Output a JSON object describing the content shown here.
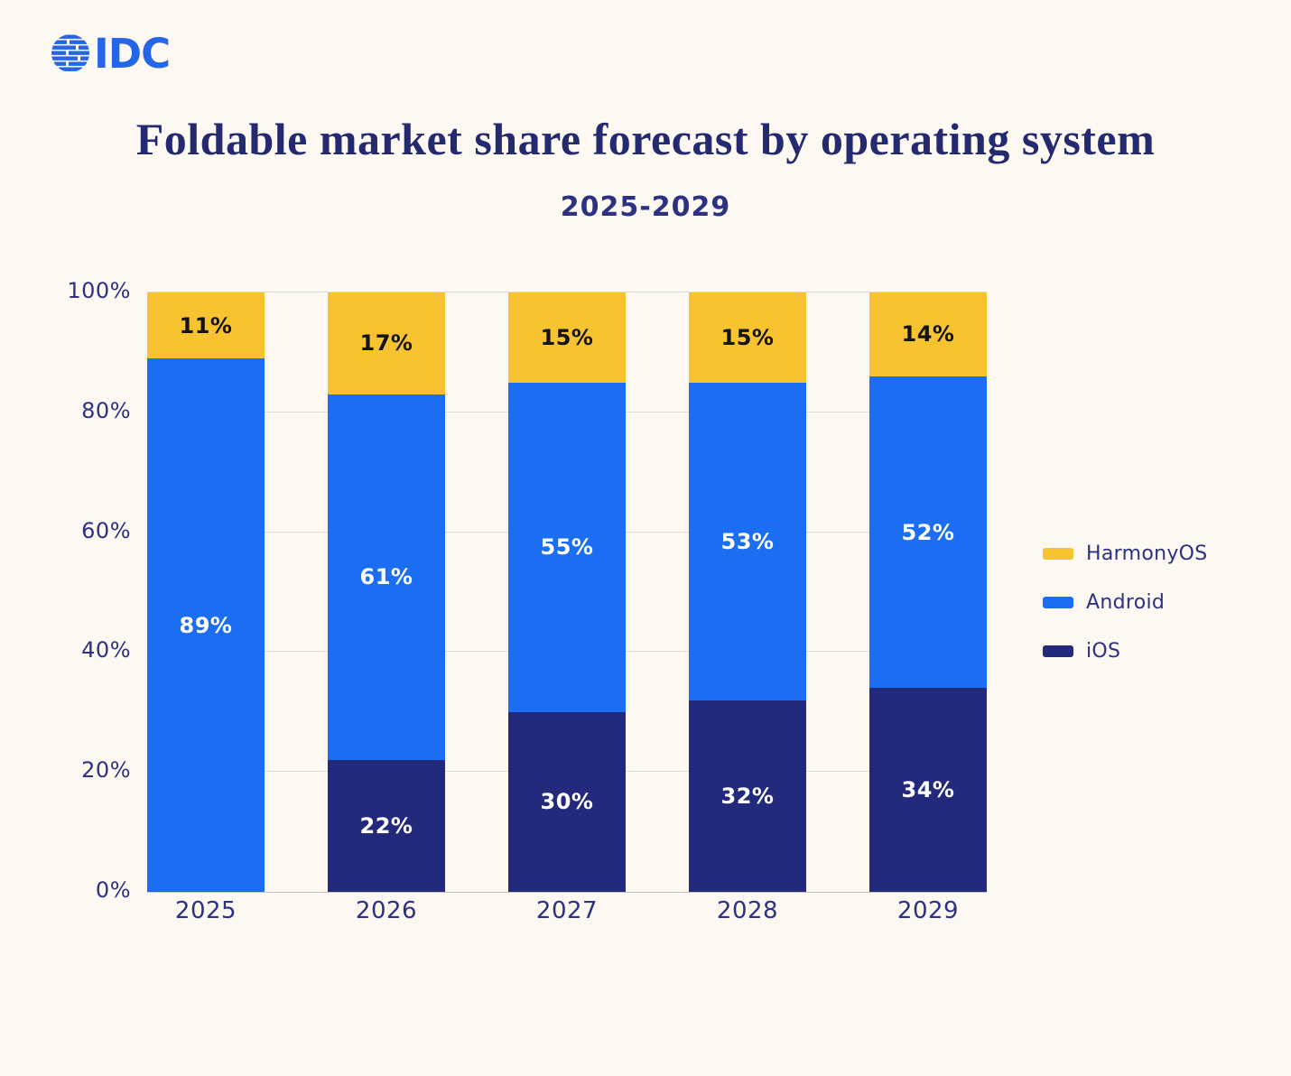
{
  "header": {
    "logo_text": "IDC",
    "logo_color": "#2566E8",
    "title": "Foldable market share forecast by operating system",
    "subtitle": "2025-2029"
  },
  "colors": {
    "background": "#FDF8F2",
    "title_text": "#232A6F",
    "axis_text": "#2C3182",
    "gridline": "#DFDAD4",
    "baseline": "#C9C5C1"
  },
  "chart_data": {
    "type": "bar",
    "stacked": true,
    "title": "Foldable market share forecast by operating system",
    "subtitle": "2025-2029",
    "categories": [
      "2025",
      "2026",
      "2027",
      "2028",
      "2029"
    ],
    "series": [
      {
        "name": "HarmonyOS",
        "color": "#F8C331",
        "label_color": "#131313",
        "values": [
          11,
          17,
          15,
          15,
          14
        ]
      },
      {
        "name": "Android",
        "color": "#1B6EF2",
        "label_color": "#FFFFFF",
        "values": [
          89,
          61,
          55,
          53,
          52
        ]
      },
      {
        "name": "iOS",
        "color": "#232A7C",
        "label_color": "#FFFFFF",
        "values": [
          0,
          22,
          30,
          32,
          34
        ]
      }
    ],
    "stack_order_top_to_bottom": [
      "HarmonyOS",
      "Android",
      "iOS"
    ],
    "value_suffix": "%",
    "ylim": [
      0,
      100
    ],
    "yticks": [
      0,
      20,
      40,
      60,
      80,
      100
    ],
    "ytick_suffix": "%",
    "grid": true,
    "legend_position": "right",
    "legend_items": [
      "HarmonyOS",
      "Android",
      "iOS"
    ]
  }
}
